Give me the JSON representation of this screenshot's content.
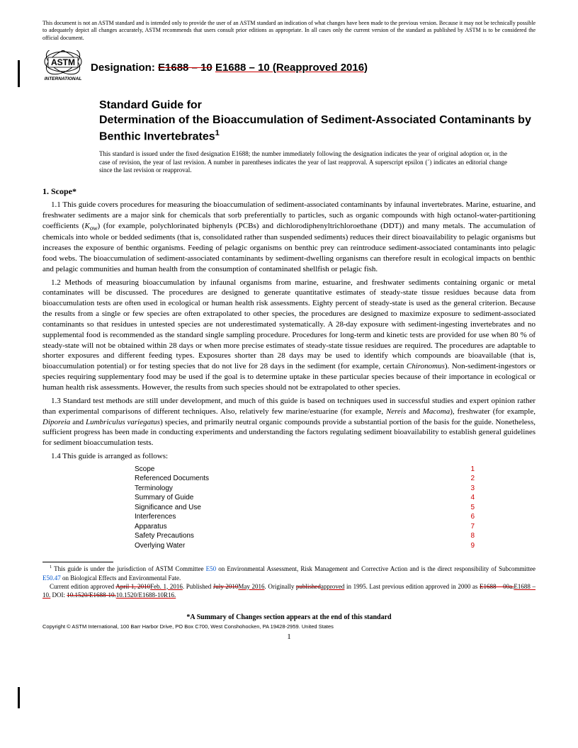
{
  "disclaimer": "This document is not an ASTM standard and is intended only to provide the user of an ASTM standard an indication of what changes have been made to the previous version. Because it may not be technically possible to adequately depict all changes accurately, ASTM recommends that users consult prior editions as appropriate. In all cases only the current version of the standard as published by ASTM is to be considered the official document.",
  "logo_label": "ASTM INTERNATIONAL",
  "designation_label": "Designation:",
  "designation_strike": "E1688 – 10",
  "designation_new": "E1688 – 10 (Reapproved 2016)",
  "title_line1": "Standard Guide for",
  "title_line2": "Determination of the Bioaccumulation of Sediment-Associated Contaminants by Benthic Invertebrates",
  "title_sup": "1",
  "issue_note": "This standard is issued under the fixed designation E1688; the number immediately following the designation indicates the year of original adoption or, in the case of revision, the year of last revision. A number in parentheses indicates the year of last reapproval. A superscript epsilon (´) indicates an editorial change since the last revision or reapproval.",
  "scope_head": "1. Scope*",
  "p11": "1.1 This guide covers procedures for measuring the bioaccumulation of sediment-associated contaminants by infaunal invertebrates. Marine, estuarine, and freshwater sediments are a major sink for chemicals that sorb preferentially to particles, such as organic compounds with high octanol-water-partitioning coefficients (",
  "p11_kow": "K",
  "p11_ow": "ow",
  "p11_b": ") (for example, polychlorinated biphenyls (PCBs) and dichlorodiphenyltrichloroethane (DDT)) and many metals. The accumulation of chemicals into whole or bedded sediments (that is, consolidated rather than suspended sediments) reduces their direct bioavailability to pelagic organisms but increases the exposure of benthic organisms. Feeding of pelagic organisms on benthic prey can reintroduce sediment-associated contaminants into pelagic food webs. The bioaccumulation of sediment-associated contaminants by sediment-dwelling organisms can therefore result in ecological impacts on benthic and pelagic communities and human health from the consumption of contaminated shellfish or pelagic fish.",
  "p12": "1.2 Methods of measuring bioaccumulation by infaunal organisms from marine, estuarine, and freshwater sediments containing organic or metal contaminates will be discussed. The procedures are designed to generate quantitative estimates of steady-state tissue residues because data from bioaccumulation tests are often used in ecological or human health risk assessments. Eighty percent of steady-state is used as the general criterion. Because the results from a single or few species are often extrapolated to other species, the procedures are designed to maximize exposure to sediment-associated contaminants so that residues in untested species are not underestimated systematically. A 28-day exposure with sediment-ingesting invertebrates and no supplemental food is recommended as the standard single sampling procedure. Procedures for long-term and kinetic tests are provided for use when 80 % of steady-state will not be obtained within 28 days or when more precise estimates of steady-state tissue residues are required. The procedures are adaptable to shorter exposures and different feeding types. Exposures shorter than 28 days may be used to identify which compounds are bioavailable (that is, bioaccumulation potential) or for testing species that do not live for 28 days in the sediment (for example, certain ",
  "p12_chironomus": "Chironomus",
  "p12_b": "). Non-sediment-ingestors or species requiring supplementary food may be used if the goal is to determine uptake in these particular species because of their importance in ecological or human health risk assessments. However, the results from such species should not be extrapolated to other species.",
  "p13_a": "1.3 Standard test methods are still under development, and much of this guide is based on techniques used in successful studies and expert opinion rather than experimental comparisons of different techniques. Also, relatively few marine/estuarine (for example, ",
  "p13_nereis": "Nereis",
  "p13_and": " and ",
  "p13_macoma": "Macoma",
  "p13_b": "), freshwater (for example, ",
  "p13_diporeia": "Diporeia",
  "p13_and2": " and ",
  "p13_lumb": "Lumbriculus variegatus",
  "p13_c": ") species, and primarily neutral organic compounds provide a substantial portion of the basis for the guide. Nonetheless, sufficient progress has been made in conducting experiments and understanding the factors regulating sediment bioavailability to establish general guidelines for sediment bioaccumulation tests.",
  "p14": "1.4 This guide is arranged as follows:",
  "toc": [
    {
      "label": "Scope",
      "num": "1"
    },
    {
      "label": "Referenced Documents",
      "num": "2"
    },
    {
      "label": "Terminology",
      "num": "3"
    },
    {
      "label": "Summary of Guide",
      "num": "4"
    },
    {
      "label": "Significance and Use",
      "num": "5"
    },
    {
      "label": "Interferences",
      "num": "6"
    },
    {
      "label": "Apparatus",
      "num": "7"
    },
    {
      "label": "Safety Precautions",
      "num": "8"
    },
    {
      "label": "Overlying Water",
      "num": "9"
    }
  ],
  "fn1_a": " This guide is under the jurisdiction of ASTM Committee ",
  "fn1_link1": "E50",
  "fn1_b": " on Environmental Assessment, Risk Management and Corrective Action and is the direct responsibility of Subcommittee ",
  "fn1_link2": "E50.47",
  "fn1_c": " on Biological Effects and Environmental Fate.",
  "fn2_a": "Current edition approved ",
  "fn2_strike1": "April 1, 2010",
  "fn2_new1": "Feb. 1, 2016",
  "fn2_b": ". Published ",
  "fn2_strike2": "July 2010",
  "fn2_new2": "May 2016",
  "fn2_c": ". Originally ",
  "fn2_strike3": "published",
  "fn2_new3": "approved",
  "fn2_d": " in 1995. Last previous edition approved in 2000 as ",
  "fn2_strike4": "E1688 – 00a.",
  "fn2_new4": "E1688 – 10.",
  "fn2_e": " DOI: ",
  "fn2_strike5": "10.1520/E1688-10.",
  "fn2_new5": "10.1520/E1688-10R16.",
  "summary": "*A Summary of Changes section appears at the end of this standard",
  "copyright": "Copyright © ASTM International, 100 Barr Harbor Drive, PO Box C700, West Conshohocken, PA 19428-2959. United States",
  "pagenum": "1"
}
